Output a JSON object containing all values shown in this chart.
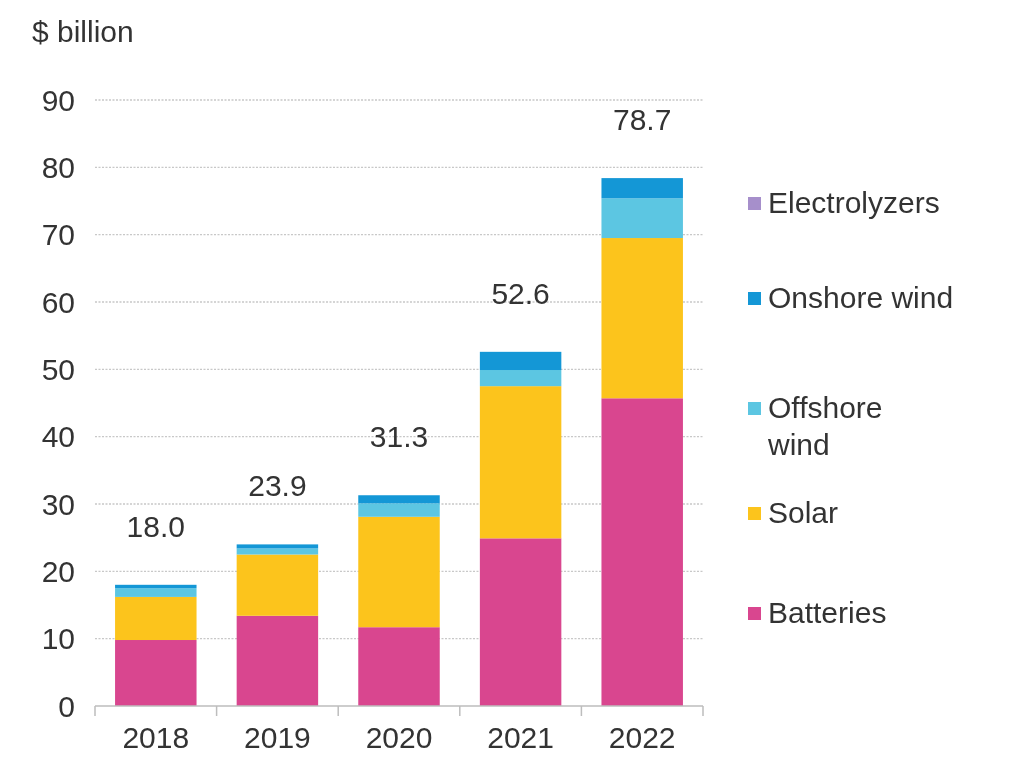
{
  "chart_data": {
    "type": "bar",
    "stacked": true,
    "ylabel": "$ billion",
    "categories": [
      "2018",
      "2019",
      "2020",
      "2021",
      "2022"
    ],
    "series": [
      {
        "name": "Batteries",
        "color": "#d9468f",
        "values": [
          9.8,
          13.4,
          11.7,
          24.9,
          45.7
        ]
      },
      {
        "name": "Solar",
        "color": "#fcc41c",
        "values": [
          6.4,
          9.1,
          16.4,
          22.6,
          23.8
        ]
      },
      {
        "name": "Offshore wind",
        "color": "#5cc6e2",
        "values": [
          1.3,
          0.9,
          2.0,
          2.4,
          5.9
        ]
      },
      {
        "name": "Onshore wind",
        "color": "#1497d6",
        "values": [
          0.5,
          0.6,
          1.2,
          2.7,
          3.0
        ]
      },
      {
        "name": "Electrolyzers",
        "color": "#a68fcb",
        "values": [
          0,
          0,
          0,
          0,
          0
        ]
      }
    ],
    "totals": [
      "18.0",
      "23.9",
      "31.3",
      "52.6",
      "78.7"
    ],
    "ylim": [
      0,
      90
    ],
    "yticks": [
      0,
      10,
      20,
      30,
      40,
      50,
      60,
      70,
      80,
      90
    ],
    "grid": "y",
    "legend": "right"
  }
}
